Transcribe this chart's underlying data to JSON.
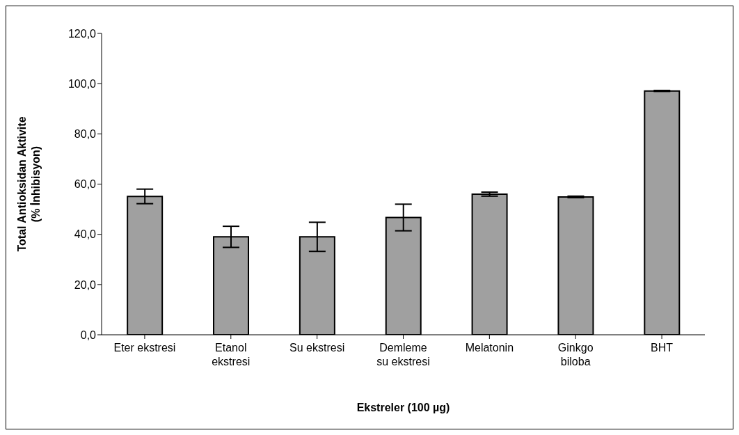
{
  "chart_data": {
    "type": "bar",
    "xlabel": "Ekstreler (100 µg)",
    "ylabel": "Total Antioksidan Aktivite\n(% İnhibisyon)",
    "categories": [
      "Eter ekstresi",
      "Etanol\nekstresi",
      "Su ekstresi",
      "Demleme\nsu ekstresi",
      "Melatonin",
      "Ginkgo\nbiloba",
      "BHT"
    ],
    "values": [
      55.1,
      39.0,
      39.0,
      46.7,
      56.0,
      54.9,
      97.1
    ],
    "errors": [
      2.9,
      4.2,
      5.8,
      5.3,
      0.8,
      0.3,
      0.2
    ],
    "color": "#a0a0a0",
    "ylim": [
      0,
      120
    ],
    "yticks": [
      {
        "value": 0,
        "label": "0,0"
      },
      {
        "value": 20,
        "label": "20,0"
      },
      {
        "value": 40,
        "label": "40,0"
      },
      {
        "value": 60,
        "label": "60,0"
      },
      {
        "value": 80,
        "label": "80,0"
      },
      {
        "value": 100,
        "label": "100,0"
      },
      {
        "value": 120,
        "label": "120,0"
      }
    ],
    "grid": false,
    "legend": false
  }
}
